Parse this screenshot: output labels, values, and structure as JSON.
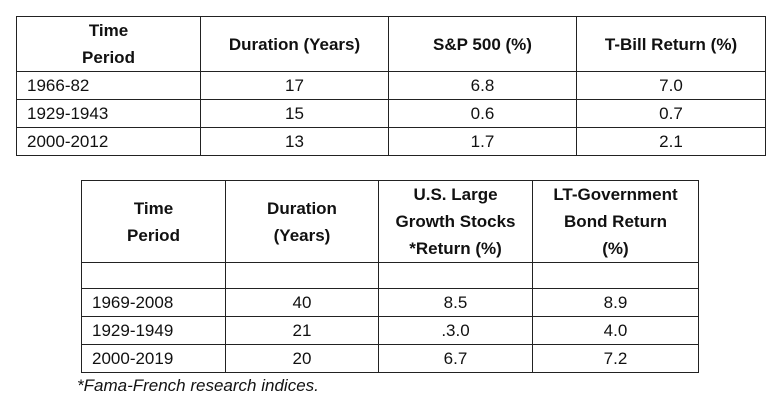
{
  "table1": {
    "headers": [
      "Time\nPeriod",
      "Duration (Years)",
      "S&P 500 (%)",
      "T-Bill Return (%)"
    ],
    "rows": [
      [
        "1966-82",
        "17",
        "6.8",
        "7.0"
      ],
      [
        "1929-1943",
        "15",
        "0.6",
        "0.7"
      ],
      [
        "2000-2012",
        "13",
        "1.7",
        "2.1"
      ]
    ]
  },
  "table2": {
    "headers": [
      "Time\nPeriod",
      "Duration\n(Years)",
      "U.S. Large\nGrowth Stocks\n*Return (%)",
      "LT-Government\nBond Return\n(%)"
    ],
    "rows": [
      [
        "",
        "",
        "",
        ""
      ],
      [
        "1969-2008",
        "40",
        "8.5",
        "8.9"
      ],
      [
        "1929-1949",
        "21",
        ".3.0",
        "4.0"
      ],
      [
        "2000-2019",
        "20",
        "6.7",
        "7.2"
      ]
    ]
  },
  "footnote": "*Fama-French research indices."
}
